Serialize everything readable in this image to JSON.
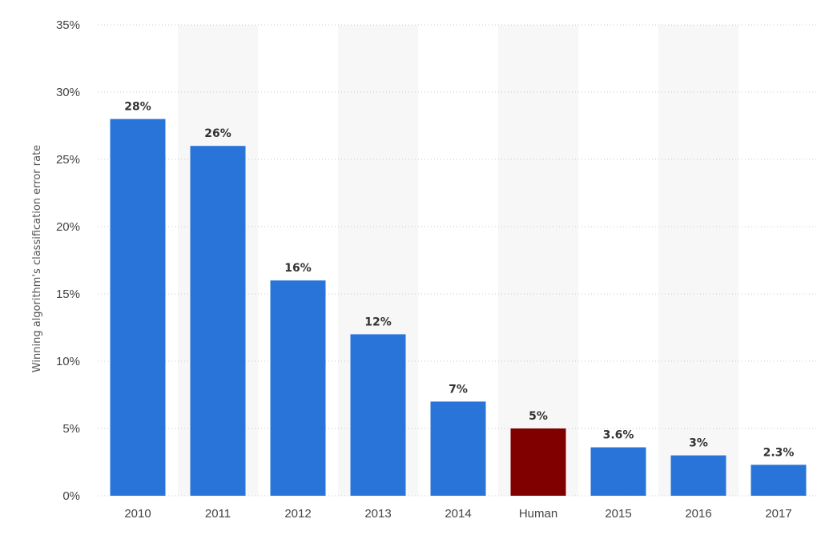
{
  "chart_data": {
    "type": "bar",
    "title": "",
    "xlabel": "",
    "ylabel": "Winning algorithm's classification error rate",
    "categories": [
      "2010",
      "2011",
      "2012",
      "2013",
      "2014",
      "Human",
      "2015",
      "2016",
      "2017"
    ],
    "values": [
      28,
      26,
      16,
      12,
      7,
      5,
      3.6,
      3,
      2.3
    ],
    "value_labels": [
      "28%",
      "26%",
      "16%",
      "12%",
      "7%",
      "5%",
      "3.6%",
      "3%",
      "2.3%"
    ],
    "ylim": [
      0,
      35
    ],
    "yticks": [
      0,
      5,
      10,
      15,
      20,
      25,
      30,
      35
    ],
    "ytick_labels": [
      "0%",
      "5%",
      "10%",
      "15%",
      "20%",
      "25%",
      "30%",
      "35%"
    ],
    "grid": true,
    "legend": "none",
    "colors": {
      "default": "#2874d9",
      "highlight": "#800000",
      "highlight_category": "Human"
    }
  }
}
